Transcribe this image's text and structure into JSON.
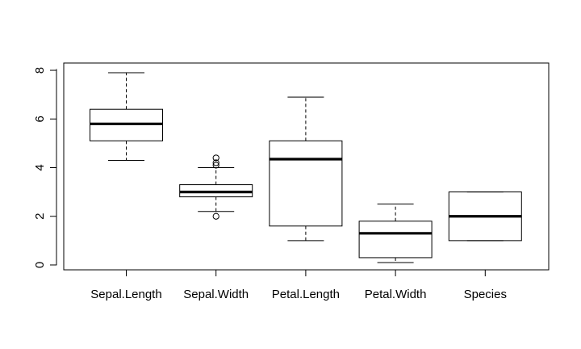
{
  "chart_data": {
    "type": "boxplot",
    "categories": [
      "Sepal.Length",
      "Sepal.Width",
      "Petal.Length",
      "Petal.Width",
      "Species"
    ],
    "ylim": [
      -0.2,
      8.3
    ],
    "yticks": [
      "0",
      "2",
      "4",
      "6",
      "8"
    ],
    "grid": false,
    "legend": "none",
    "boxes": [
      {
        "min": 4.3,
        "q1": 5.1,
        "median": 5.8,
        "q3": 6.4,
        "max": 7.9,
        "outliers": []
      },
      {
        "min": 2.2,
        "q1": 2.8,
        "median": 3.0,
        "q3": 3.3,
        "max": 4.0,
        "outliers": [
          2.0,
          4.1,
          4.2,
          4.4
        ]
      },
      {
        "min": 1.0,
        "q1": 1.6,
        "median": 4.35,
        "q3": 5.1,
        "max": 6.9,
        "outliers": []
      },
      {
        "min": 0.1,
        "q1": 0.3,
        "median": 1.3,
        "q3": 1.8,
        "max": 2.5,
        "outliers": []
      },
      {
        "min": 1.0,
        "q1": 1.0,
        "median": 2.0,
        "q3": 3.0,
        "max": 3.0,
        "outliers": []
      }
    ]
  }
}
